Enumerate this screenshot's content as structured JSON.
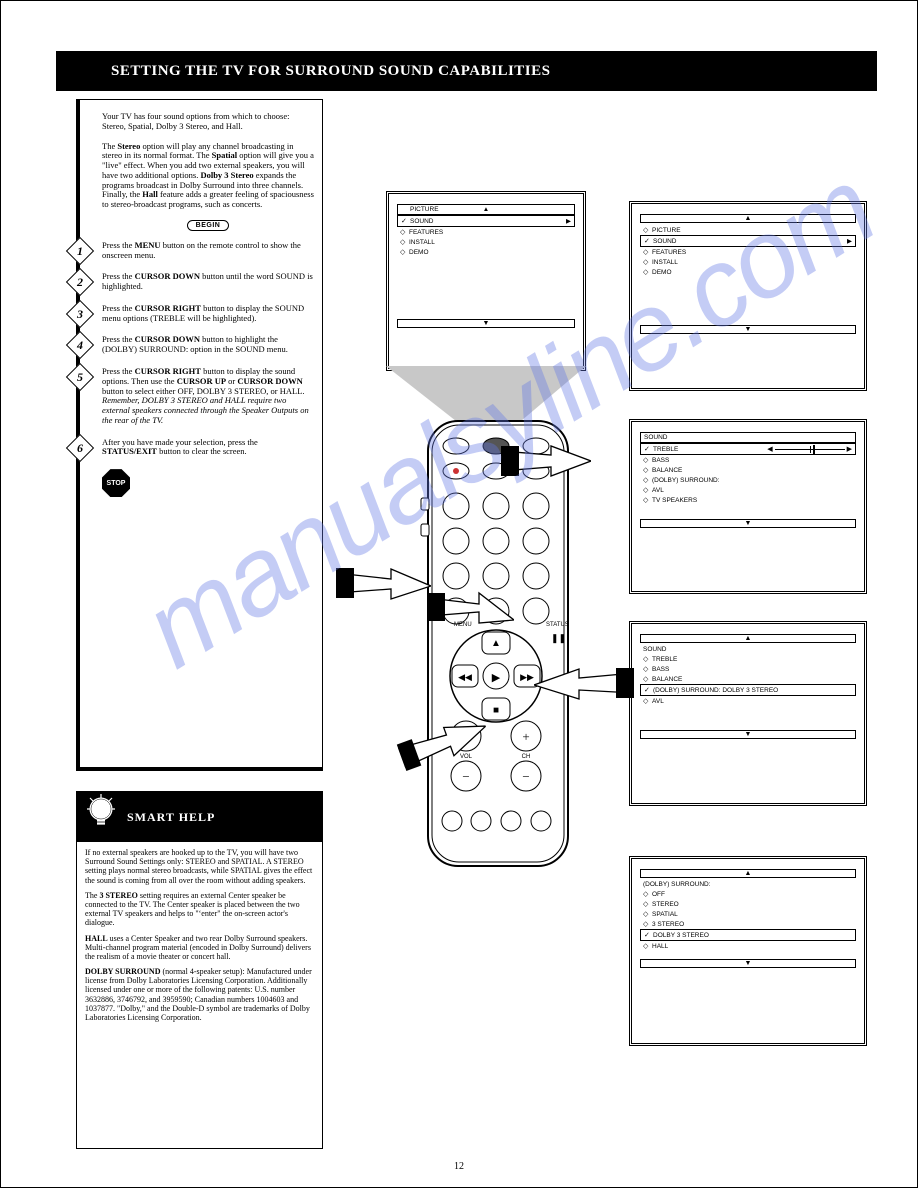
{
  "page_number": "12",
  "header": {
    "title": "SETTING THE TV FOR SURROUND SOUND CAPABILITIES"
  },
  "intro": {
    "p1": "Your TV has four sound options from which to choose: Stereo, Spatial, Dolby 3 Stereo, and Hall.",
    "p2_1": "The ",
    "p2_bold1": "Stereo",
    "p2_2": " option will play any channel broadcasting in stereo in its normal format. The ",
    "p2_bold2": "Spatial",
    "p2_3": " option will give you a \"live\" effect. When you add two external speakers, you will have two additional options. ",
    "p2_bold3": "Dolby 3 Stereo",
    "p2_4": " expands the programs broadcast in Dolby Surround into three channels. Finally, the ",
    "p2_bold4": "Hall",
    "p2_5": " feature adds a greater feeling of spaciousness to stereo-broadcast programs, such as concerts."
  },
  "begin_label": "BEGIN",
  "steps": {
    "s1": {
      "n": "1",
      "t1": "Press the ",
      "b1": "MENU",
      "t2": " button on the remote control to show the onscreen menu."
    },
    "s2": {
      "n": "2",
      "t1": "Press the ",
      "b1": "CURSOR DOWN",
      "t2": " button until the word SOUND is highlighted."
    },
    "s3": {
      "n": "3",
      "t1": "Press the ",
      "b1": "CURSOR RIGHT",
      "t2": " button to display the SOUND menu options (TREBLE will be highlighted)."
    },
    "s4": {
      "n": "4",
      "t1": "Press the ",
      "b1": "CURSOR DOWN",
      "t2": " button to highlight the (DOLBY) SURROUND: option in the SOUND menu."
    },
    "s5": {
      "n": "5",
      "t1": "Press the ",
      "b1": "CURSOR RIGHT",
      "t2": " button to display the sound options. Then use the ",
      "b2": "CURSOR UP",
      "t3": " or ",
      "b3": "CURSOR DOWN",
      "t4": " button to select either OFF, DOLBY 3 STEREO, or HALL. ",
      "ital": "Remember, DOLBY 3 STEREO and HALL require two external speakers connected through the Speaker Outputs on the rear of the TV."
    },
    "s6": {
      "n": "6",
      "t1": "After you have made your selection, press the ",
      "b1": "STATUS/EXIT",
      "t2": " button to clear the screen."
    }
  },
  "stop_label": "STOP",
  "help": {
    "heading": "SMART HELP",
    "p1": "If no external speakers are hooked up to the TV, you will have two Surround Sound Settings only: STEREO and SPATIAL. A STEREO setting plays normal stereo broadcasts, while SPATIAL gives the effect the sound is coming from all over the room without adding speakers.",
    "p2_1": "The ",
    "p2_b1": "3 STEREO",
    "p2_2": " setting requires an external Center speaker be connected to the TV. The Center speaker is placed between the two external TV speakers and helps to \"‘enter\" the on-screen actor's dialogue.",
    "p3_1": "",
    "p3_b1": "HALL",
    "p3_2": " uses a Center Speaker and two rear Dolby Surround speakers. Multi-channel program material (encoded in Dolby Surround) delivers the realism of a movie theater or concert hall.",
    "p4_1": "",
    "p4_b1": "DOLBY SURROUND",
    "p4_2": " (normal 4-speaker setup): Manufactured under license from Dolby Laboratories Licensing Corporation. Additionally licensed under one or more of the following patents: U.S. number 3632886, 3746792, and 3959590; Canadian numbers 1004603 and 1037877. \"Dolby,\" and the Double-D symbol are trademarks of Dolby Laboratories Licensing Corporation."
  },
  "osd1": {
    "up": "▲",
    "items": [
      {
        "mark": "",
        "label": "PICTURE",
        "arrow": "▲",
        "boxed": true,
        "top_arrow": true
      },
      {
        "mark": "✓",
        "label": "SOUND",
        "arrow": "▶",
        "boxed": true
      },
      {
        "mark": "◇",
        "label": "FEATURES",
        "arrow": "",
        "boxed": false
      },
      {
        "mark": "◇",
        "label": "INSTALL",
        "arrow": "",
        "boxed": false
      },
      {
        "mark": "◇",
        "label": "DEMO",
        "arrow": "",
        "boxed": false
      }
    ],
    "down": "▼"
  },
  "osd2": {
    "up": "▲",
    "items": [
      {
        "mark": "◇",
        "label": "PICTURE",
        "arrow": "",
        "boxed": false
      },
      {
        "mark": "✓",
        "label": "SOUND",
        "arrow": "▶",
        "boxed": true
      },
      {
        "mark": "◇",
        "label": "FEATURES",
        "arrow": "",
        "boxed": false
      },
      {
        "mark": "◇",
        "label": "INSTALL",
        "arrow": "",
        "boxed": false
      },
      {
        "mark": "◇",
        "label": "DEMO",
        "arrow": "",
        "boxed": false
      }
    ],
    "down": "▼"
  },
  "osd3": {
    "title": "SOUND",
    "items": [
      {
        "mark": "✓",
        "label": "TREBLE",
        "slider": true,
        "thumb": 55
      },
      {
        "mark": "◇",
        "label": "BASS"
      },
      {
        "mark": "◇",
        "label": "BALANCE"
      },
      {
        "mark": "◇",
        "label": "(DOLBY) SURROUND:"
      },
      {
        "mark": "◇",
        "label": "AVL"
      },
      {
        "mark": "◇",
        "label": "TV SPEAKERS"
      }
    ],
    "down": "▼"
  },
  "osd4": {
    "up": "▲",
    "title": "SOUND",
    "items": [
      {
        "mark": "◇",
        "label": "TREBLE"
      },
      {
        "mark": "◇",
        "label": "BASS"
      },
      {
        "mark": "◇",
        "label": "BALANCE"
      },
      {
        "mark": "✓",
        "label": "(DOLBY) SURROUND:           DOLBY 3 STEREO",
        "boxed": true
      },
      {
        "mark": "◇",
        "label": "AVL"
      }
    ],
    "down": "▼"
  },
  "osd5": {
    "up": "▲",
    "title": "(DOLBY) SURROUND:",
    "items": [
      {
        "mark": "◇",
        "label": "OFF"
      },
      {
        "mark": "◇",
        "label": "STEREO"
      },
      {
        "mark": "◇",
        "label": "SPATIAL"
      },
      {
        "mark": "◇",
        "label": "3 STEREO"
      },
      {
        "mark": "✓",
        "label": "DOLBY 3 STEREO",
        "boxed": true
      },
      {
        "mark": "◇",
        "label": "HALL"
      }
    ],
    "down": "▼"
  },
  "remote_labels": {
    "menu": "MENU",
    "status": "STATUS",
    "vol": "VOL",
    "ch": "CH"
  },
  "watermark": "manualsyline.com",
  "colors": {
    "wm": "rgba(100,120,230,0.38)",
    "black": "#000000",
    "white": "#ffffff"
  }
}
